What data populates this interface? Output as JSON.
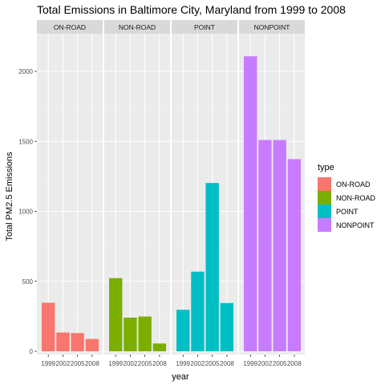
{
  "chart_data": {
    "type": "bar",
    "title": "Total Emissions in Baltimore City, Maryland from 1999 to 2008",
    "xlabel": "year",
    "ylabel": "Total PM2.5 Emissions",
    "ylim": [
      0,
      2200
    ],
    "y_ticks": [
      0,
      500,
      1000,
      1500,
      2000
    ],
    "categories": [
      "1999",
      "2002",
      "2005",
      "2008"
    ],
    "grid": true,
    "legend_position": "right",
    "legend_title": "type",
    "facets": [
      {
        "name": "ON-ROAD",
        "color": "#F8766D",
        "values": [
          346.8,
          134.3,
          130.4,
          88.3
        ]
      },
      {
        "name": "NON-ROAD",
        "color": "#7CAE00",
        "values": [
          522.9,
          240.8,
          248.9,
          55.8
        ]
      },
      {
        "name": "POINT",
        "color": "#00BFC4",
        "values": [
          296.8,
          569.3,
          1202.5,
          344.98
        ]
      },
      {
        "name": "NONPOINT",
        "color": "#C77CFF",
        "values": [
          2107.6,
          1509.5,
          1509.5,
          1373.2
        ]
      }
    ]
  }
}
